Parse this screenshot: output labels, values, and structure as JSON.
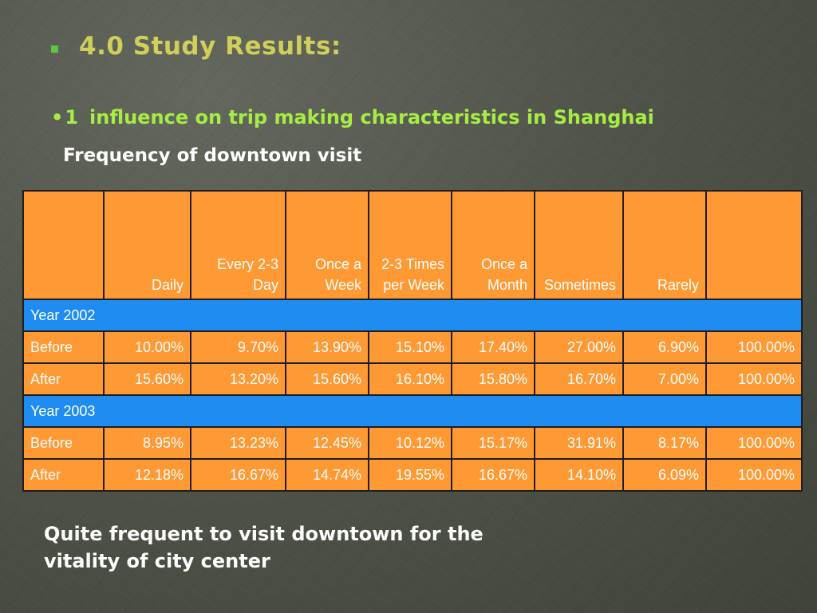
{
  "title": "4.0 Study Results:",
  "subtitle": {
    "bullet": "•",
    "number": "1",
    "text": "influence on trip making characteristics in Shanghai"
  },
  "caption": "Frequency of downtown visit",
  "colors": {
    "title": "#cfcf59",
    "subtitle": "#a7ec45",
    "cell_orange": "#ff9933",
    "year_blue": "#1f8cf2"
  },
  "table": {
    "headers": [
      "",
      "Daily",
      "Every 2-3 Day",
      "Once a Week",
      "2-3 Times per Week",
      "Once a Month",
      "Sometimes",
      "Rarely",
      ""
    ],
    "groups": [
      {
        "label": "Year 2002",
        "rows": [
          {
            "label": "Before",
            "values": [
              "10.00%",
              "9.70%",
              "13.90%",
              "15.10%",
              "17.40%",
              "27.00%",
              "6.90%",
              "100.00%"
            ]
          },
          {
            "label": "After",
            "values": [
              "15.60%",
              "13.20%",
              "15.60%",
              "16.10%",
              "15.80%",
              "16.70%",
              "7.00%",
              "100.00%"
            ]
          }
        ]
      },
      {
        "label": "Year 2003",
        "rows": [
          {
            "label": "Before",
            "values": [
              "8.95%",
              "13.23%",
              "12.45%",
              "10.12%",
              "15.17%",
              "31.91%",
              "8.17%",
              "100.00%"
            ]
          },
          {
            "label": "After",
            "values": [
              "12.18%",
              "16.67%",
              "14.74%",
              "19.55%",
              "16.67%",
              "14.10%",
              "6.09%",
              "100.00%"
            ]
          }
        ]
      }
    ]
  },
  "footer": {
    "line1": "Quite frequent to visit downtown for the",
    "line2": "vitality of city center"
  }
}
